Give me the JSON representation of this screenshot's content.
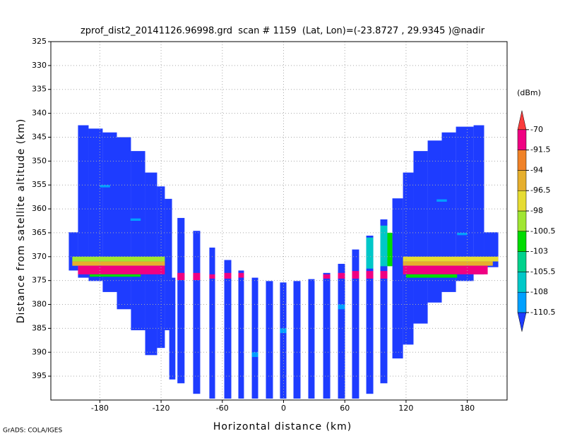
{
  "chart_data": {
    "type": "shaded",
    "title": "zprof_dist2_20141126.96998.grd  scan # 1159  (Lat, Lon)=(-23.8727 , 29.9345 )@nadir",
    "x_label": "Horizontal distance (km)",
    "y_label": "Distance from satellite altitude (km)",
    "colorbar_title": "(dBm)",
    "footer": "GrADS: COLA/IGES",
    "xlim": [
      -228,
      219
    ],
    "ylim": [
      325,
      400
    ],
    "y_inverted": true,
    "xticks": [
      -180,
      -120,
      -60,
      0,
      60,
      120,
      180
    ],
    "yticks": [
      325,
      330,
      335,
      340,
      345,
      350,
      355,
      360,
      365,
      370,
      375,
      380,
      385,
      390,
      395
    ],
    "grid": true,
    "levels": [
      -110.5,
      -108,
      -105.5,
      -103,
      -100.5,
      -98,
      -96.5,
      -94,
      -91.5,
      -70
    ],
    "colors": [
      "#1e3cff",
      "#00a0ff",
      "#00c8c8",
      "#00d28c",
      "#00dc00",
      "#a0e632",
      "#e6dc32",
      "#e6af2d",
      "#f08228",
      "#f00082",
      "#fa3c3c"
    ],
    "cells": [
      [
        -210.4,
        -201.4,
        364.9,
        372.9,
        -112
      ],
      [
        -201.4,
        -191.0,
        342.5,
        374.4,
        -112
      ],
      [
        -191.0,
        -177.2,
        343.2,
        375.1,
        -112
      ],
      [
        -177.2,
        -163.3,
        344.0,
        377.4,
        -112
      ],
      [
        -163.3,
        -149.5,
        345.0,
        381.0,
        -112
      ],
      [
        -149.5,
        -135.6,
        347.9,
        385.4,
        -112
      ],
      [
        -135.6,
        -123.9,
        352.4,
        390.6,
        -112
      ],
      [
        -123.9,
        -116.3,
        355.3,
        389.1,
        -112
      ],
      [
        -116.3,
        -109.3,
        357.9,
        385.4,
        -112
      ],
      [
        -112.0,
        -106.0,
        374.4,
        395.7,
        -112
      ],
      [
        -104.0,
        -97.0,
        361.9,
        396.5,
        -112
      ],
      [
        -88.6,
        -81.7,
        364.6,
        398.7,
        -112
      ],
      [
        -72.7,
        -67.1,
        368.1,
        399.7,
        -112
      ],
      [
        -58.1,
        -51.2,
        370.7,
        399.7,
        -112
      ],
      [
        -44.3,
        -38.8,
        372.9,
        399.7,
        -112
      ],
      [
        -31.1,
        -24.9,
        374.4,
        399.7,
        -112
      ],
      [
        -17.3,
        -10.4,
        375.1,
        399.7,
        -112
      ],
      [
        -3.5,
        2.8,
        375.4,
        399.7,
        -112
      ],
      [
        9.7,
        16.6,
        375.1,
        399.7,
        -112
      ],
      [
        24.2,
        30.4,
        374.7,
        399.7,
        -112
      ],
      [
        38.8,
        45.7,
        373.4,
        399.7,
        -112
      ],
      [
        53.3,
        60.2,
        371.5,
        399.7,
        -112
      ],
      [
        67.1,
        74.0,
        368.5,
        399.7,
        -112
      ],
      [
        81.0,
        87.9,
        365.6,
        398.7,
        -112
      ],
      [
        94.8,
        101.7,
        362.2,
        396.5,
        -112
      ],
      [
        106.6,
        117.0,
        357.8,
        391.3,
        -112
      ],
      [
        117.0,
        127.3,
        352.4,
        388.4,
        -112
      ],
      [
        127.3,
        141.2,
        347.9,
        384.0,
        -112
      ],
      [
        141.2,
        155.0,
        345.7,
        379.6,
        -112
      ],
      [
        155.0,
        168.9,
        344.0,
        377.4,
        -112
      ],
      [
        168.9,
        186.2,
        342.8,
        375.1,
        -112
      ],
      [
        186.2,
        196.5,
        342.5,
        373.7,
        -112
      ],
      [
        196.5,
        210.4,
        364.9,
        372.2,
        -112
      ],
      [
        -180,
        -170,
        355,
        355.5,
        -109
      ],
      [
        -150,
        -140,
        362,
        362.5,
        -109
      ],
      [
        150,
        160,
        358,
        358.5,
        -109
      ],
      [
        170,
        180,
        365,
        365.5,
        -109
      ],
      [
        -3.5,
        2.8,
        385,
        386,
        -109
      ],
      [
        -31.1,
        -24.9,
        390,
        391,
        -109
      ],
      [
        53.3,
        60.2,
        380,
        381,
        -109
      ],
      [
        -207,
        -116.3,
        370.0,
        371.0,
        -99
      ],
      [
        -207,
        -116.3,
        371.0,
        371.9,
        -95
      ],
      [
        -201.4,
        -116.3,
        371.9,
        373.7,
        -85
      ],
      [
        -190,
        -140,
        373.7,
        374.2,
        -101.5
      ],
      [
        -104.0,
        -97.0,
        373.4,
        374.9,
        -85
      ],
      [
        -88.6,
        -81.7,
        373.4,
        374.9,
        -85
      ],
      [
        -72.7,
        -67.1,
        373.7,
        374.6,
        -85
      ],
      [
        -58.1,
        -51.2,
        373.4,
        374.6,
        -85
      ],
      [
        -44.3,
        -38.8,
        373.4,
        374.4,
        -85
      ],
      [
        38.8,
        45.7,
        373.7,
        374.6,
        -85
      ],
      [
        53.3,
        60.2,
        373.4,
        374.6,
        -85
      ],
      [
        67.1,
        74.0,
        373.0,
        374.6,
        -85
      ],
      [
        81.0,
        87.9,
        373.0,
        374.6,
        -85
      ],
      [
        94.8,
        101.7,
        373.0,
        374.6,
        -85
      ],
      [
        81.0,
        87.9,
        366.0,
        372.5,
        -107
      ],
      [
        94.8,
        101.7,
        363.5,
        372.0,
        -107
      ],
      [
        101.7,
        106.6,
        365.0,
        372.0,
        -102
      ],
      [
        117.0,
        210.4,
        370.0,
        371.0,
        -97
      ],
      [
        117.0,
        205,
        371.0,
        371.9,
        -95
      ],
      [
        117.0,
        200,
        371.9,
        373.7,
        -85
      ],
      [
        120,
        170,
        373.7,
        374.4,
        -101.5
      ]
    ]
  }
}
